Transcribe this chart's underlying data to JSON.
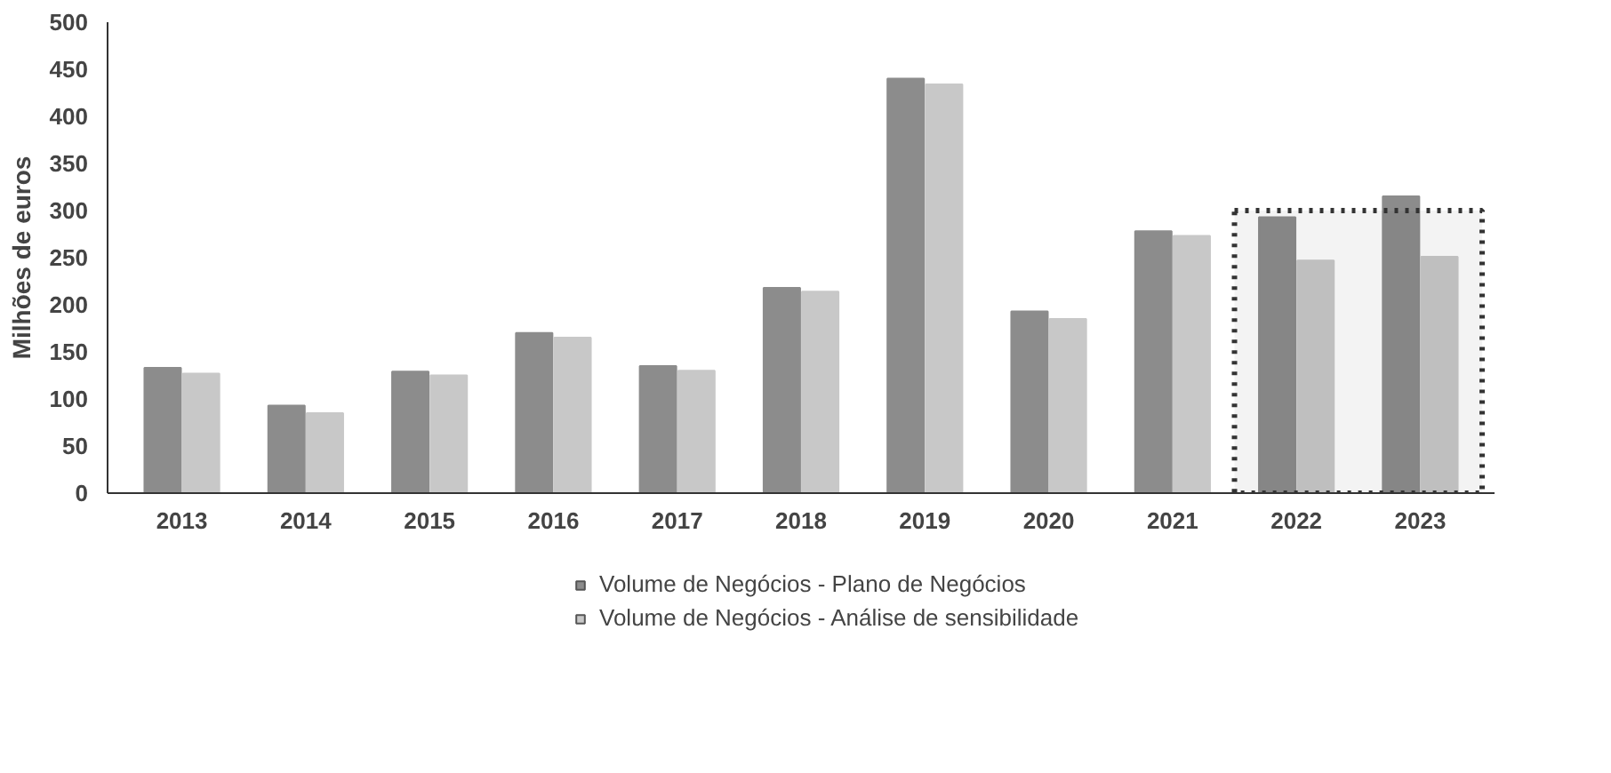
{
  "chart_data": {
    "type": "bar",
    "ylabel": "Milhões de euros",
    "categories": [
      "2013",
      "2014",
      "2015",
      "2016",
      "2017",
      "2018",
      "2019",
      "2020",
      "2021",
      "2022",
      "2023"
    ],
    "series": [
      {
        "name": "Volume de Negócios - Plano de Negócios",
        "color": "#8c8c8c",
        "values": [
          133,
          93,
          129,
          170,
          135,
          218,
          440,
          193,
          278,
          293,
          315
        ]
      },
      {
        "name": "Volume de Negócios - Análise de sensibilidade",
        "color": "#c8c8c8",
        "values": [
          127,
          85,
          125,
          165,
          130,
          214,
          434,
          185,
          273,
          247,
          251
        ]
      }
    ],
    "ylim": [
      0,
      500
    ],
    "yticks": [
      0,
      50,
      100,
      150,
      200,
      250,
      300,
      350,
      400,
      450,
      500
    ],
    "bands": [
      {
        "axis": "x",
        "from": "2022",
        "to": "2023",
        "color": "#333333"
      }
    ],
    "grid": false,
    "legend": "bottom"
  }
}
